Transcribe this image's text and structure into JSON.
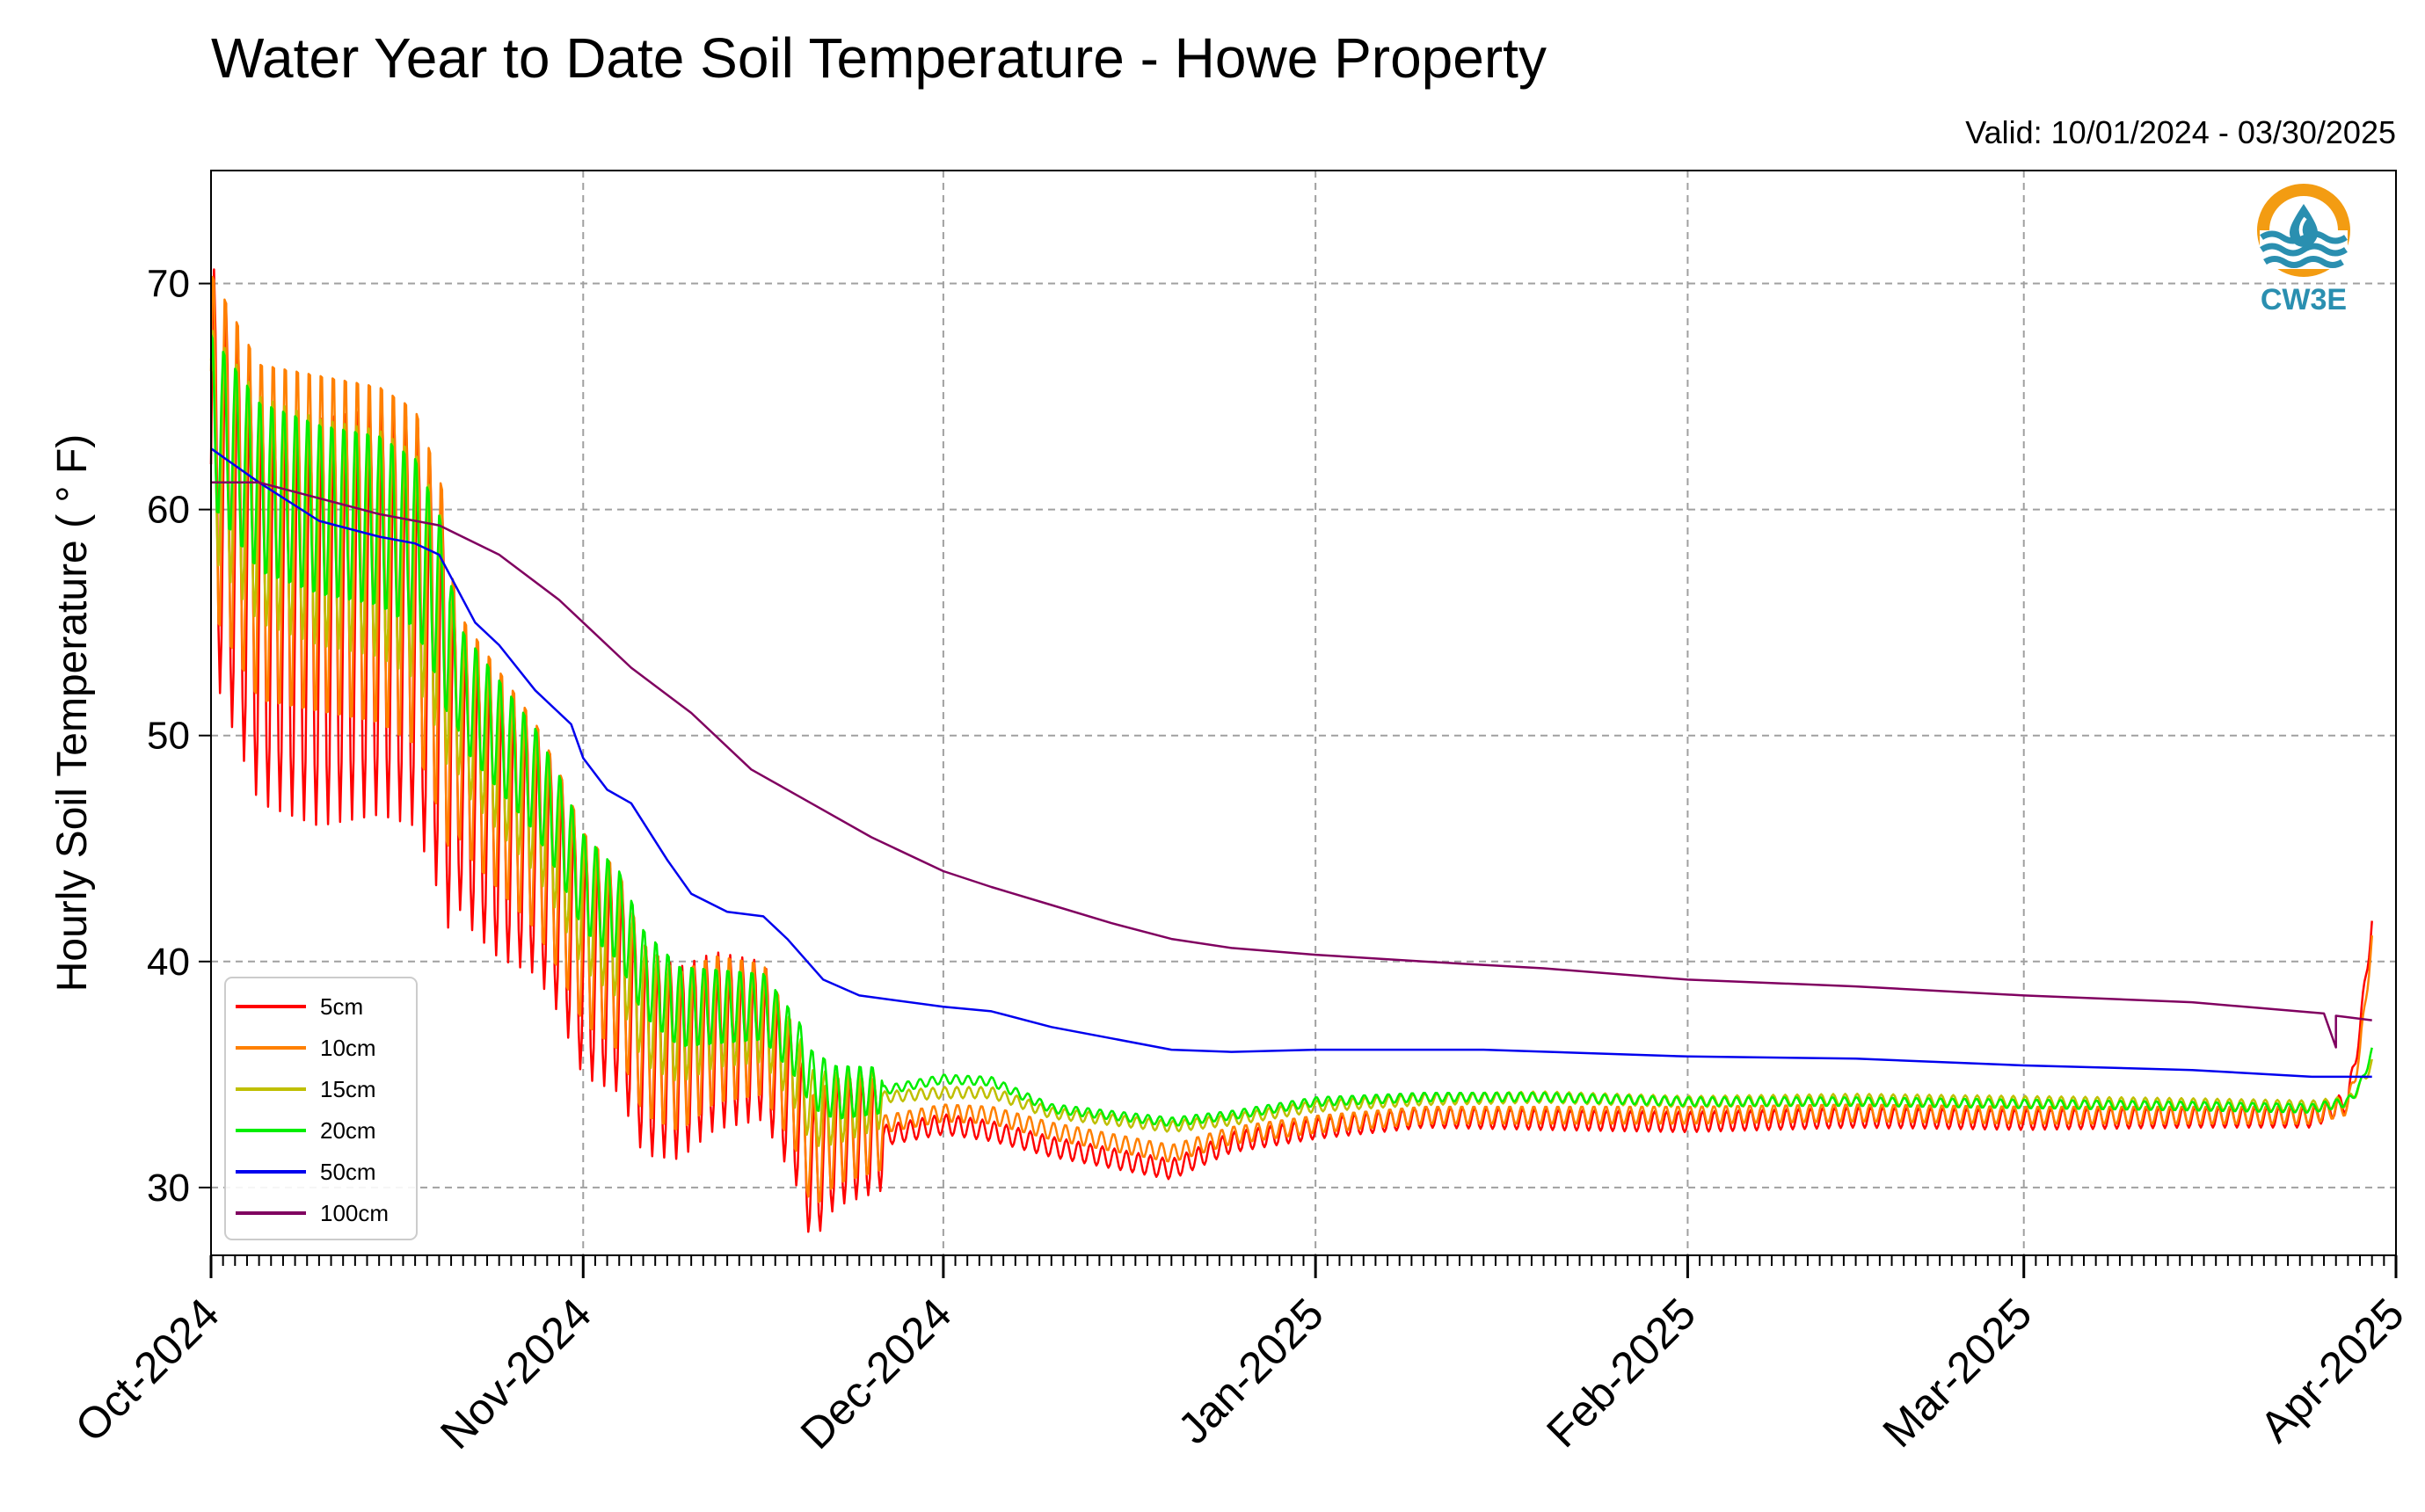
{
  "chart_data": {
    "type": "line",
    "title": "Water Year to Date Soil Temperature - Howe Property",
    "subtitle": "Valid: 10/01/2024 - 03/30/2025",
    "xlabel": "",
    "ylabel": "Hourly Soil Temperature ( ° F)",
    "xlim": [
      "2024-10-01",
      "2025-04-01"
    ],
    "ylim": [
      27,
      75
    ],
    "yticks": [
      30,
      40,
      50,
      60,
      70
    ],
    "xticks": [
      {
        "date": "2024-10-01",
        "label": "Oct-2024"
      },
      {
        "date": "2024-11-01",
        "label": "Nov-2024"
      },
      {
        "date": "2024-12-01",
        "label": "Dec-2024"
      },
      {
        "date": "2025-01-01",
        "label": "Jan-2025"
      },
      {
        "date": "2025-02-01",
        "label": "Feb-2025"
      },
      {
        "date": "2025-03-01",
        "label": "Mar-2025"
      },
      {
        "date": "2025-04-01",
        "label": "Apr-2025"
      }
    ],
    "grid": true,
    "legend_position": "lower-left",
    "series": [
      {
        "name": "5cm",
        "color": "#ff0000",
        "diurnal": true,
        "points": [
          [
            "2024-10-01",
            62
          ],
          [
            "2024-10-05",
            56
          ],
          [
            "2024-10-10",
            55
          ],
          [
            "2024-10-15",
            55.5
          ],
          [
            "2024-10-18",
            55
          ],
          [
            "2024-10-20",
            52
          ],
          [
            "2024-10-22",
            48
          ],
          [
            "2024-10-25",
            46
          ],
          [
            "2024-10-28",
            45
          ],
          [
            "2024-10-30",
            43
          ],
          [
            "2024-11-01",
            40
          ],
          [
            "2024-11-04",
            39
          ],
          [
            "2024-11-06",
            36
          ],
          [
            "2024-11-09",
            35.5
          ],
          [
            "2024-11-12",
            36.5
          ],
          [
            "2024-11-16",
            36.5
          ],
          [
            "2024-11-19",
            33
          ],
          [
            "2024-11-20",
            30.5
          ],
          [
            "2024-11-22",
            32
          ],
          [
            "2024-11-26",
            32.3
          ],
          [
            "2024-12-01",
            32.8
          ],
          [
            "2024-12-05",
            32.5
          ],
          [
            "2024-12-10",
            31.8
          ],
          [
            "2024-12-15",
            31.3
          ],
          [
            "2024-12-20",
            30.8
          ],
          [
            "2024-12-25",
            32
          ],
          [
            "2025-01-01",
            32.6
          ],
          [
            "2025-01-10",
            33.1
          ],
          [
            "2025-01-20",
            33
          ],
          [
            "2025-02-01",
            32.9
          ],
          [
            "2025-02-15",
            33.1
          ],
          [
            "2025-03-01",
            33
          ],
          [
            "2025-03-15",
            33.1
          ],
          [
            "2025-03-25",
            33.1
          ],
          [
            "2025-03-28",
            33.8
          ],
          [
            "2025-03-29",
            37
          ],
          [
            "2025-03-30",
            41.8
          ]
        ]
      },
      {
        "name": "10cm",
        "color": "#ff8000",
        "diurnal": true,
        "points": [
          [
            "2024-10-01",
            63
          ],
          [
            "2024-10-05",
            59
          ],
          [
            "2024-10-10",
            58.5
          ],
          [
            "2024-10-15",
            58
          ],
          [
            "2024-10-18",
            57
          ],
          [
            "2024-10-20",
            54
          ],
          [
            "2024-10-22",
            50
          ],
          [
            "2024-10-25",
            48
          ],
          [
            "2024-10-28",
            46
          ],
          [
            "2024-10-30",
            44
          ],
          [
            "2024-11-01",
            41.5
          ],
          [
            "2024-11-04",
            40
          ],
          [
            "2024-11-06",
            37
          ],
          [
            "2024-11-09",
            36
          ],
          [
            "2024-11-12",
            37
          ],
          [
            "2024-11-16",
            37
          ],
          [
            "2024-11-19",
            34
          ],
          [
            "2024-11-20",
            31.5
          ],
          [
            "2024-11-22",
            32.5
          ],
          [
            "2024-11-26",
            32.8
          ],
          [
            "2024-12-01",
            33.3
          ],
          [
            "2024-12-05",
            33.2
          ],
          [
            "2024-12-10",
            32.5
          ],
          [
            "2024-12-15",
            32
          ],
          [
            "2024-12-20",
            31.5
          ],
          [
            "2024-12-25",
            32.3
          ],
          [
            "2025-01-01",
            32.8
          ],
          [
            "2025-01-10",
            33.2
          ],
          [
            "2025-01-20",
            33.2
          ],
          [
            "2025-02-01",
            33.2
          ],
          [
            "2025-02-15",
            33.3
          ],
          [
            "2025-03-01",
            33.2
          ],
          [
            "2025-03-15",
            33.2
          ],
          [
            "2025-03-25",
            33.2
          ],
          [
            "2025-03-28",
            33.6
          ],
          [
            "2025-03-29",
            36
          ],
          [
            "2025-03-30",
            41
          ]
        ]
      },
      {
        "name": "15cm",
        "color": "#bfbf00",
        "diurnal": true,
        "points": [
          [
            "2024-10-01",
            63
          ],
          [
            "2024-10-05",
            60
          ],
          [
            "2024-10-10",
            59
          ],
          [
            "2024-10-15",
            58.5
          ],
          [
            "2024-10-18",
            57.5
          ],
          [
            "2024-10-20",
            55
          ],
          [
            "2024-10-22",
            51
          ],
          [
            "2024-10-25",
            49
          ],
          [
            "2024-10-28",
            47
          ],
          [
            "2024-10-30",
            45
          ],
          [
            "2024-11-01",
            42.5
          ],
          [
            "2024-11-04",
            41
          ],
          [
            "2024-11-06",
            38
          ],
          [
            "2024-11-09",
            37
          ],
          [
            "2024-11-12",
            37.5
          ],
          [
            "2024-11-16",
            37.5
          ],
          [
            "2024-11-19",
            35
          ],
          [
            "2024-11-20",
            33.5
          ],
          [
            "2024-11-22",
            33.5
          ],
          [
            "2024-11-26",
            34
          ],
          [
            "2024-12-01",
            34.2
          ],
          [
            "2024-12-05",
            34.2
          ],
          [
            "2024-12-10",
            33.3
          ],
          [
            "2024-12-15",
            33
          ],
          [
            "2024-12-20",
            32.7
          ],
          [
            "2024-12-25",
            33
          ],
          [
            "2025-01-01",
            33.6
          ],
          [
            "2025-01-10",
            33.9
          ],
          [
            "2025-01-20",
            34
          ],
          [
            "2025-02-01",
            33.8
          ],
          [
            "2025-02-15",
            33.9
          ],
          [
            "2025-03-01",
            33.8
          ],
          [
            "2025-03-15",
            33.7
          ],
          [
            "2025-03-25",
            33.6
          ],
          [
            "2025-03-28",
            33.8
          ],
          [
            "2025-03-29",
            34.5
          ],
          [
            "2025-03-30",
            35.5
          ]
        ]
      },
      {
        "name": "20cm",
        "color": "#00ee00",
        "diurnal": true,
        "points": [
          [
            "2024-10-01",
            64
          ],
          [
            "2024-10-05",
            61
          ],
          [
            "2024-10-10",
            60
          ],
          [
            "2024-10-15",
            59.5
          ],
          [
            "2024-10-18",
            58.5
          ],
          [
            "2024-10-20",
            56
          ],
          [
            "2024-10-22",
            52
          ],
          [
            "2024-10-25",
            50
          ],
          [
            "2024-10-28",
            48
          ],
          [
            "2024-10-30",
            46
          ],
          [
            "2024-11-01",
            43.5
          ],
          [
            "2024-11-04",
            42
          ],
          [
            "2024-11-06",
            39.5
          ],
          [
            "2024-11-09",
            38
          ],
          [
            "2024-11-12",
            38
          ],
          [
            "2024-11-16",
            38
          ],
          [
            "2024-11-19",
            36
          ],
          [
            "2024-11-20",
            34.8
          ],
          [
            "2024-11-22",
            34.2
          ],
          [
            "2024-11-26",
            34.3
          ],
          [
            "2024-12-01",
            34.8
          ],
          [
            "2024-12-05",
            34.7
          ],
          [
            "2024-12-10",
            33.5
          ],
          [
            "2024-12-15",
            33.2
          ],
          [
            "2024-12-20",
            32.9
          ],
          [
            "2024-12-25",
            33.2
          ],
          [
            "2025-01-01",
            33.8
          ],
          [
            "2025-01-10",
            34
          ],
          [
            "2025-01-20",
            34
          ],
          [
            "2025-02-01",
            33.8
          ],
          [
            "2025-02-15",
            33.8
          ],
          [
            "2025-03-01",
            33.7
          ],
          [
            "2025-03-15",
            33.6
          ],
          [
            "2025-03-25",
            33.5
          ],
          [
            "2025-03-28",
            33.8
          ],
          [
            "2025-03-29",
            34.5
          ],
          [
            "2025-03-30",
            36
          ]
        ]
      },
      {
        "name": "50cm",
        "color": "#0000ee",
        "diurnal": false,
        "points": [
          [
            "2024-10-01",
            62.7
          ],
          [
            "2024-10-05",
            61.2
          ],
          [
            "2024-10-10",
            59.5
          ],
          [
            "2024-10-15",
            58.8
          ],
          [
            "2024-10-18",
            58.5
          ],
          [
            "2024-10-20",
            58
          ],
          [
            "2024-10-23",
            55
          ],
          [
            "2024-10-25",
            54
          ],
          [
            "2024-10-28",
            52
          ],
          [
            "2024-10-31",
            50.5
          ],
          [
            "2024-11-01",
            49
          ],
          [
            "2024-11-03",
            47.6
          ],
          [
            "2024-11-05",
            47
          ],
          [
            "2024-11-08",
            44.5
          ],
          [
            "2024-11-10",
            43
          ],
          [
            "2024-11-13",
            42.2
          ],
          [
            "2024-11-16",
            42
          ],
          [
            "2024-11-18",
            41
          ],
          [
            "2024-11-21",
            39.2
          ],
          [
            "2024-11-24",
            38.5
          ],
          [
            "2024-12-01",
            38
          ],
          [
            "2024-12-05",
            37.8
          ],
          [
            "2024-12-10",
            37.1
          ],
          [
            "2024-12-15",
            36.6
          ],
          [
            "2024-12-20",
            36.1
          ],
          [
            "2024-12-25",
            36
          ],
          [
            "2025-01-01",
            36.1
          ],
          [
            "2025-01-15",
            36.1
          ],
          [
            "2025-02-01",
            35.8
          ],
          [
            "2025-02-15",
            35.7
          ],
          [
            "2025-03-01",
            35.4
          ],
          [
            "2025-03-15",
            35.2
          ],
          [
            "2025-03-25",
            34.9
          ],
          [
            "2025-03-30",
            34.9
          ]
        ]
      },
      {
        "name": "100cm",
        "color": "#800060",
        "diurnal": false,
        "points": [
          [
            "2024-10-01",
            61.2
          ],
          [
            "2024-10-05",
            61.2
          ],
          [
            "2024-10-10",
            60.5
          ],
          [
            "2024-10-15",
            59.8
          ],
          [
            "2024-10-20",
            59.3
          ],
          [
            "2024-10-25",
            58
          ],
          [
            "2024-10-30",
            56
          ],
          [
            "2024-11-01",
            55
          ],
          [
            "2024-11-05",
            53
          ],
          [
            "2024-11-10",
            51
          ],
          [
            "2024-11-15",
            48.5
          ],
          [
            "2024-11-20",
            47
          ],
          [
            "2024-11-25",
            45.5
          ],
          [
            "2024-12-01",
            44
          ],
          [
            "2024-12-05",
            43.3
          ],
          [
            "2024-12-10",
            42.5
          ],
          [
            "2024-12-15",
            41.7
          ],
          [
            "2024-12-20",
            41
          ],
          [
            "2024-12-25",
            40.6
          ],
          [
            "2025-01-01",
            40.3
          ],
          [
            "2025-01-10",
            40
          ],
          [
            "2025-01-20",
            39.7
          ],
          [
            "2025-02-01",
            39.2
          ],
          [
            "2025-02-15",
            38.9
          ],
          [
            "2025-03-01",
            38.5
          ],
          [
            "2025-03-15",
            38.2
          ],
          [
            "2025-03-26",
            37.7
          ],
          [
            "2025-03-27",
            36.2
          ],
          [
            "2025-03-27",
            37.6
          ],
          [
            "2025-03-30",
            37.4
          ]
        ]
      }
    ]
  },
  "logo": {
    "text": "CW3E",
    "color": "#2a8fb0",
    "accent": "#f39c12"
  }
}
